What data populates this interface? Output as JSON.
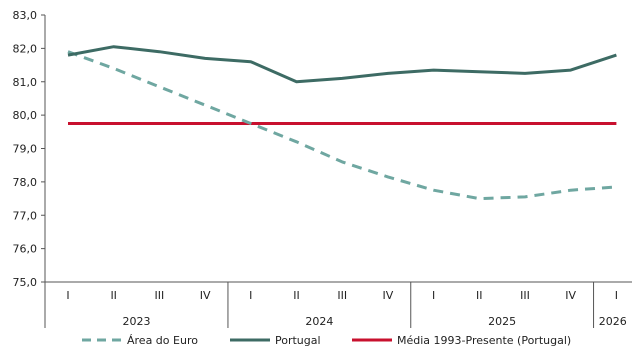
{
  "chart_data": {
    "type": "line",
    "title": "",
    "xlabel": "",
    "ylabel": "",
    "ylim": [
      75.0,
      83.0
    ],
    "yticks": [
      "83,0",
      "82,0",
      "81,0",
      "80,0",
      "79,0",
      "78,0",
      "77,0",
      "76,0",
      "75,0"
    ],
    "ytick_values": [
      83,
      82,
      81,
      80,
      79,
      78,
      77,
      76,
      75
    ],
    "categories": [
      "I",
      "II",
      "III",
      "IV",
      "I",
      "II",
      "III",
      "IV",
      "I",
      "II",
      "III",
      "IV",
      "I"
    ],
    "year_groups": [
      {
        "label": "2023",
        "count": 4
      },
      {
        "label": "2024",
        "count": 4
      },
      {
        "label": "2025",
        "count": 4
      },
      {
        "label": "2026",
        "count": 1
      }
    ],
    "series": [
      {
        "name": "Área do Euro",
        "color": "#6fa7a1",
        "style": "dashed",
        "values": [
          81.9,
          81.4,
          80.85,
          80.3,
          79.75,
          79.2,
          78.6,
          78.15,
          77.75,
          77.5,
          77.55,
          77.75,
          77.85
        ]
      },
      {
        "name": "Portugal",
        "color": "#3d6b64",
        "style": "solid",
        "values": [
          81.8,
          82.05,
          81.9,
          81.7,
          81.6,
          81.0,
          81.1,
          81.25,
          81.35,
          81.3,
          81.25,
          81.35,
          81.8
        ]
      },
      {
        "name": "Média 1993-Presente (Portugal)",
        "color": "#c8102e",
        "style": "solid",
        "values": [
          79.75,
          79.75,
          79.75,
          79.75,
          79.75,
          79.75,
          79.75,
          79.75,
          79.75,
          79.75,
          79.75,
          79.75,
          79.75
        ]
      }
    ],
    "grid": false,
    "legend_position": "bottom"
  }
}
